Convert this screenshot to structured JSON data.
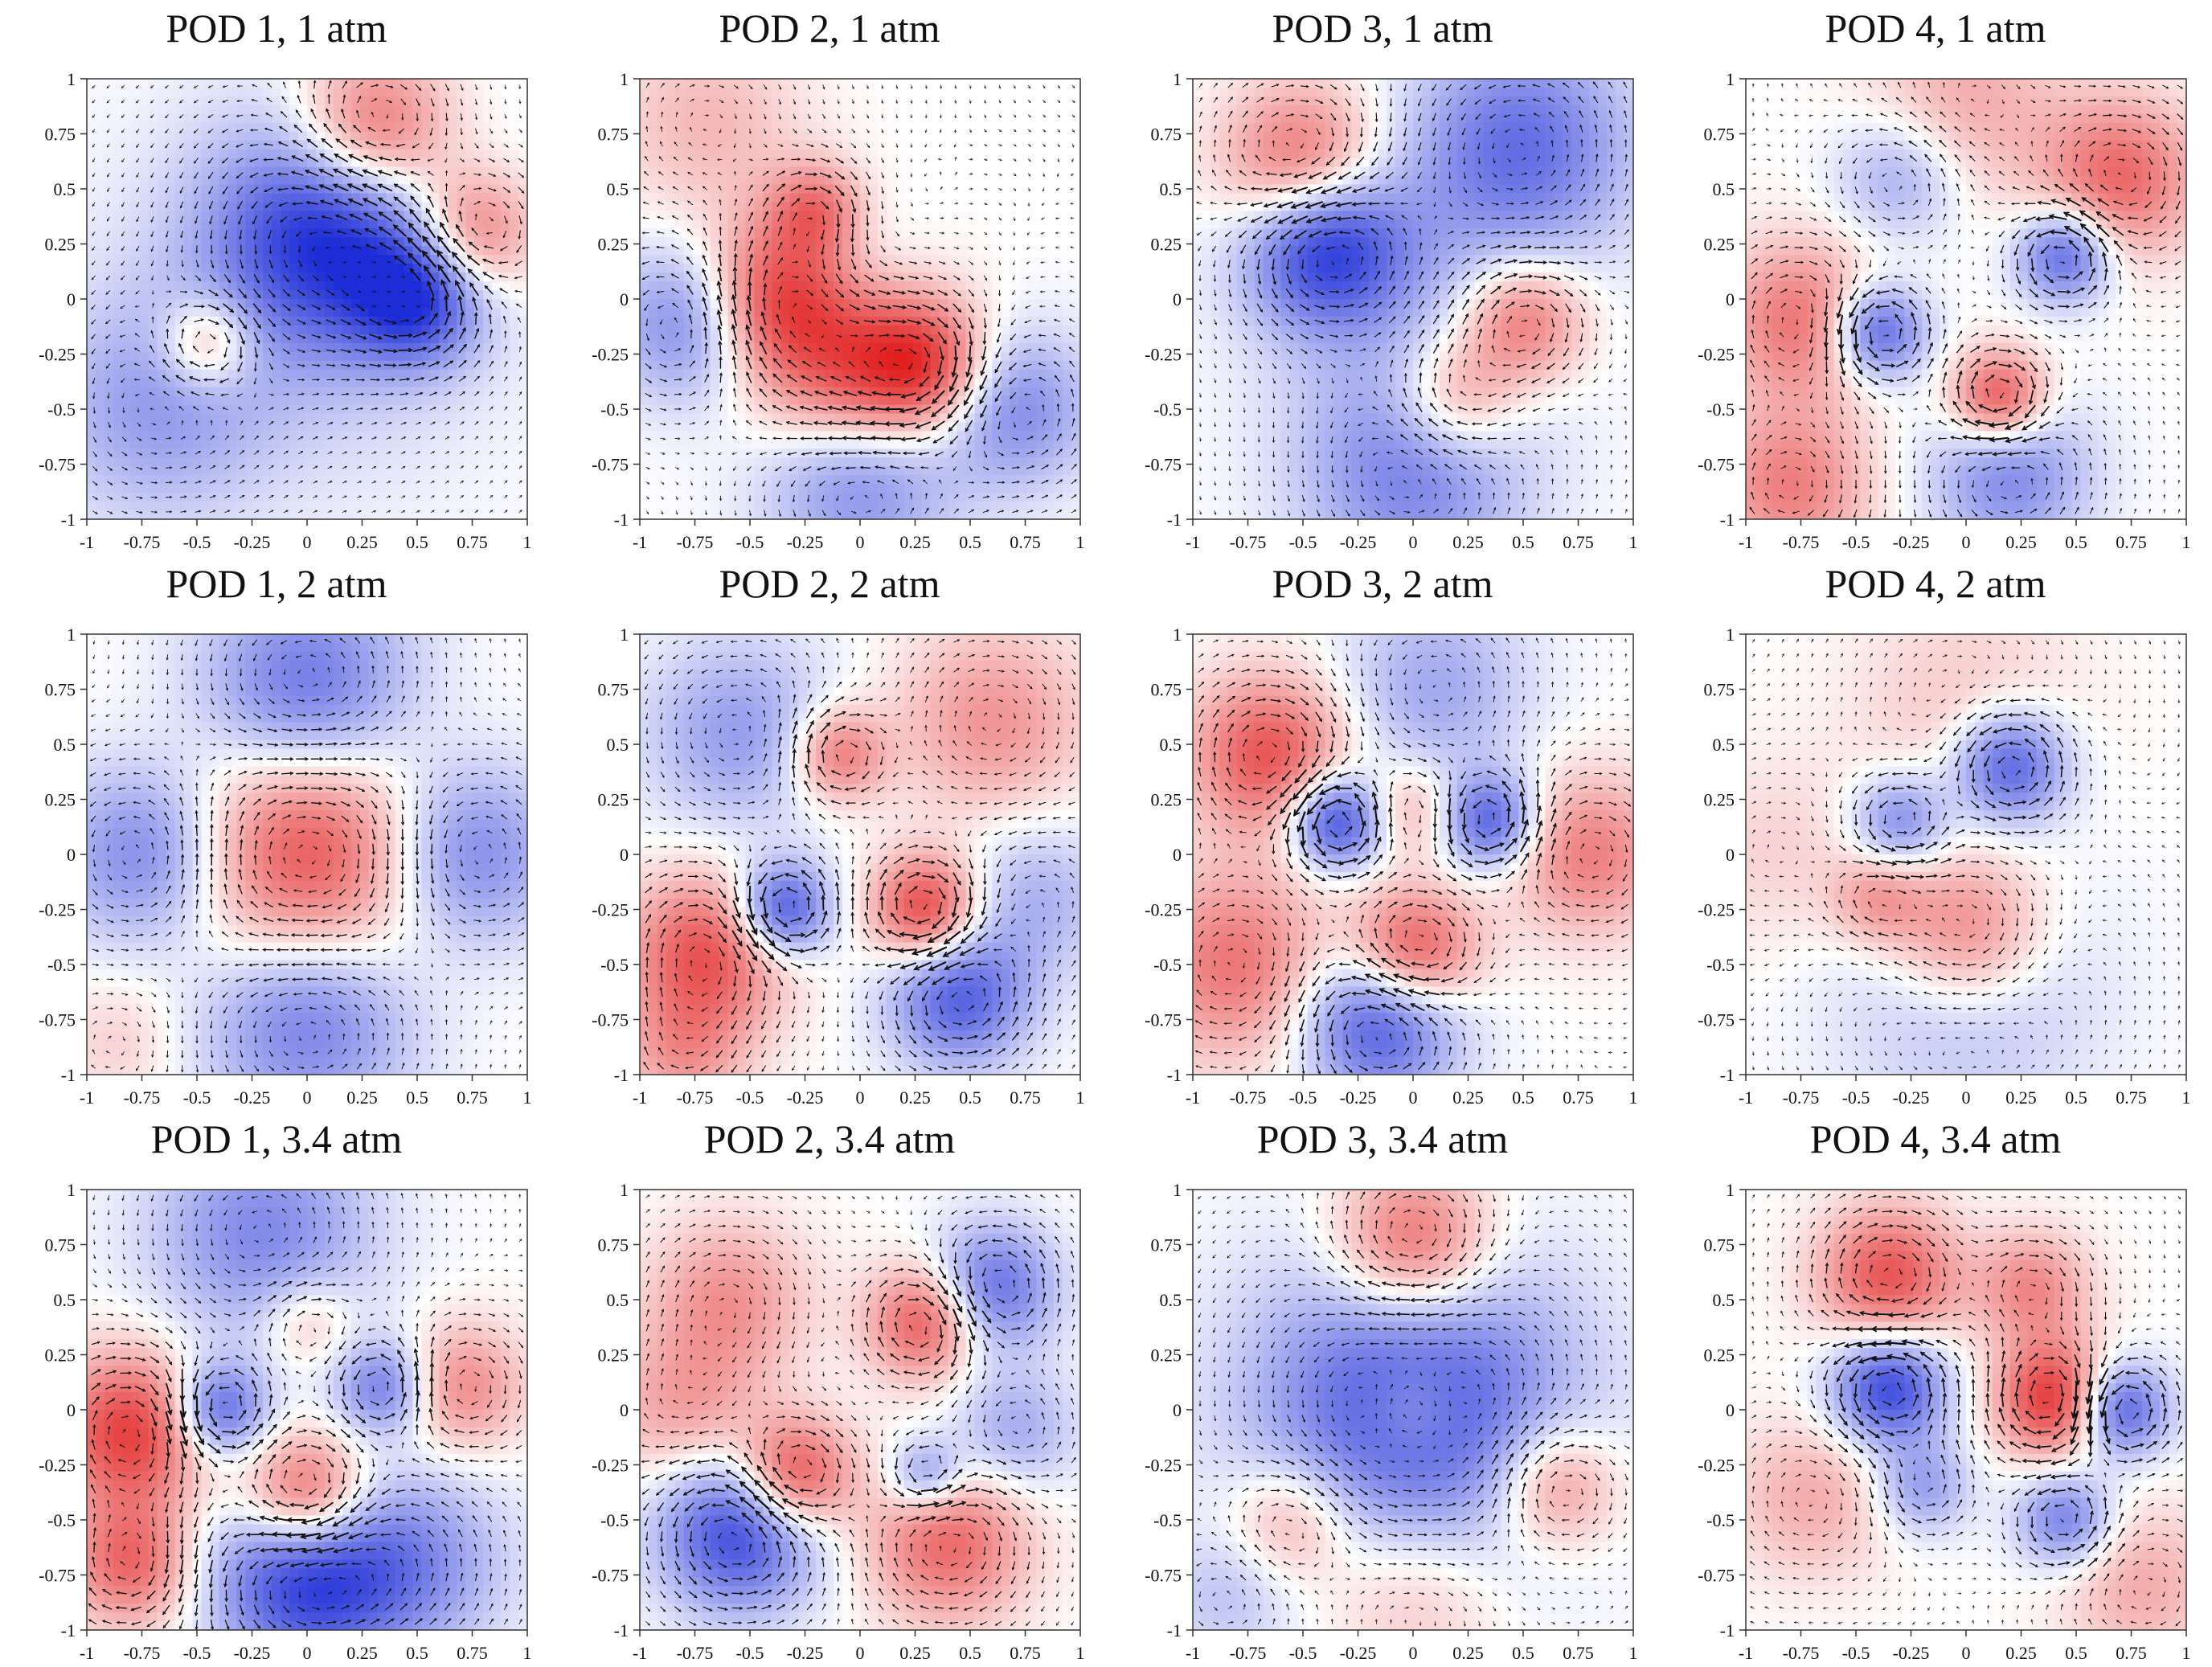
{
  "figure": {
    "colors": {
      "positive": "#e01818",
      "negative": "#1c2cd6",
      "neutral": "#ffffff",
      "vector": "#111111",
      "axis": "#333333"
    }
  },
  "chart_data": [
    {
      "type": "heatmap",
      "title": "POD 1, 1 atm",
      "mode": 1,
      "pressure_atm": 1,
      "xlim": [
        -1,
        1
      ],
      "ylim": [
        -1,
        1
      ],
      "xticks": [
        "-1",
        "-0.75",
        "-0.5",
        "-0.25",
        "0",
        "0.25",
        "0.5",
        "0.75",
        "1"
      ],
      "yticks": [
        "-1",
        "-0.75",
        "-0.5",
        "-0.25",
        "0",
        "0.25",
        "0.5",
        "0.75",
        "1"
      ],
      "colorscale": [
        "#1c2cd6",
        "#ffffff",
        "#e01818"
      ],
      "value_range": [
        -1,
        1
      ],
      "features": [
        {
          "x": 0.1,
          "y": 0.3,
          "r": 0.35,
          "value": -0.85
        },
        {
          "x": 0.5,
          "y": 0.0,
          "r": 0.2,
          "value": -0.7
        },
        {
          "x": 0.3,
          "y": 0.75,
          "r": 0.25,
          "value": 0.75
        },
        {
          "x": 0.75,
          "y": 0.3,
          "r": 0.2,
          "value": 0.6
        },
        {
          "x": -0.45,
          "y": -0.2,
          "r": 0.15,
          "value": 0.5
        },
        {
          "x": -0.7,
          "y": -0.5,
          "r": 0.35,
          "value": -0.35
        },
        {
          "x": 0.0,
          "y": 0.0,
          "r": 0.6,
          "value": -0.2
        }
      ]
    },
    {
      "type": "heatmap",
      "title": "POD 2, 1 atm",
      "mode": 2,
      "pressure_atm": 1,
      "xlim": [
        -1,
        1
      ],
      "ylim": [
        -1,
        1
      ],
      "xticks": [
        "-1",
        "-0.75",
        "-0.5",
        "-0.25",
        "0",
        "0.25",
        "0.5",
        "0.75",
        "1"
      ],
      "yticks": [
        "-1",
        "-0.75",
        "-0.5",
        "-0.25",
        "0",
        "0.25",
        "0.5",
        "0.75",
        "1"
      ],
      "colorscale": [
        "#1c2cd6",
        "#ffffff",
        "#e01818"
      ],
      "value_range": [
        -1,
        1
      ],
      "features": [
        {
          "x": -0.4,
          "y": 0.0,
          "r": 0.25,
          "value": 0.8
        },
        {
          "x": 0.0,
          "y": -0.4,
          "r": 0.3,
          "value": 0.85
        },
        {
          "x": 0.3,
          "y": -0.3,
          "r": 0.2,
          "value": 0.6
        },
        {
          "x": -0.2,
          "y": 0.4,
          "r": 0.15,
          "value": 0.5
        },
        {
          "x": 0.0,
          "y": -0.75,
          "r": 0.3,
          "value": -0.7
        },
        {
          "x": -0.75,
          "y": -0.1,
          "r": 0.25,
          "value": -0.6
        },
        {
          "x": 0.7,
          "y": -0.5,
          "r": 0.25,
          "value": -0.5
        },
        {
          "x": -0.7,
          "y": 0.8,
          "r": 0.3,
          "value": 0.25
        },
        {
          "x": 0.0,
          "y": 0.2,
          "r": 0.2,
          "value": -0.1
        }
      ]
    },
    {
      "type": "heatmap",
      "title": "POD 3, 1 atm",
      "mode": 3,
      "pressure_atm": 1,
      "xlim": [
        -1,
        1
      ],
      "ylim": [
        -1,
        1
      ],
      "xticks": [
        "-1",
        "-0.75",
        "-0.5",
        "-0.25",
        "0",
        "0.25",
        "0.5",
        "0.75",
        "1"
      ],
      "yticks": [
        "-1",
        "-0.75",
        "-0.5",
        "-0.25",
        "0",
        "0.25",
        "0.5",
        "0.75",
        "1"
      ],
      "colorscale": [
        "#1c2cd6",
        "#ffffff",
        "#e01818"
      ],
      "value_range": [
        -1,
        1
      ],
      "features": [
        {
          "x": -0.4,
          "y": 0.25,
          "r": 0.25,
          "value": -0.9
        },
        {
          "x": 0.5,
          "y": 0.7,
          "r": 0.35,
          "value": -0.6
        },
        {
          "x": -0.5,
          "y": 0.6,
          "r": 0.25,
          "value": 0.7
        },
        {
          "x": 0.5,
          "y": -0.1,
          "r": 0.2,
          "value": 0.6
        },
        {
          "x": 0.2,
          "y": -0.45,
          "r": 0.2,
          "value": 0.5
        },
        {
          "x": 0.0,
          "y": -0.8,
          "r": 0.35,
          "value": -0.5
        },
        {
          "x": 0.0,
          "y": 0.0,
          "r": 0.5,
          "value": -0.2
        }
      ]
    },
    {
      "type": "heatmap",
      "title": "POD 4, 1 atm",
      "mode": 4,
      "pressure_atm": 1,
      "xlim": [
        -1,
        1
      ],
      "ylim": [
        -1,
        1
      ],
      "xticks": [
        "-1",
        "-0.75",
        "-0.5",
        "-0.25",
        "0",
        "0.25",
        "0.5",
        "0.75",
        "1"
      ],
      "yticks": [
        "-1",
        "-0.75",
        "-0.5",
        "-0.25",
        "0",
        "0.25",
        "0.5",
        "0.75",
        "1"
      ],
      "colorscale": [
        "#1c2cd6",
        "#ffffff",
        "#e01818"
      ],
      "value_range": [
        -1,
        1
      ],
      "features": [
        {
          "x": -0.4,
          "y": -0.15,
          "r": 0.15,
          "value": -0.75
        },
        {
          "x": 0.45,
          "y": 0.2,
          "r": 0.15,
          "value": -0.7
        },
        {
          "x": 0.15,
          "y": -0.45,
          "r": 0.15,
          "value": 0.75
        },
        {
          "x": 0.7,
          "y": 0.55,
          "r": 0.25,
          "value": 0.6
        },
        {
          "x": -0.75,
          "y": -0.1,
          "r": 0.25,
          "value": 0.55
        },
        {
          "x": -0.8,
          "y": -0.85,
          "r": 0.25,
          "value": 0.5
        },
        {
          "x": 0.2,
          "y": -0.8,
          "r": 0.25,
          "value": -0.5
        },
        {
          "x": -0.3,
          "y": 0.55,
          "r": 0.2,
          "value": -0.35
        },
        {
          "x": 0.0,
          "y": 0.9,
          "r": 0.3,
          "value": 0.3
        }
      ]
    },
    {
      "type": "heatmap",
      "title": "POD 1, 2 atm",
      "mode": 1,
      "pressure_atm": 2,
      "xlim": [
        -1,
        1
      ],
      "ylim": [
        -1,
        1
      ],
      "xticks": [
        "-1",
        "-0.75",
        "-0.5",
        "-0.25",
        "0",
        "0.25",
        "0.5",
        "0.75",
        "1"
      ],
      "yticks": [
        "-1",
        "-0.75",
        "-0.5",
        "-0.25",
        "0",
        "0.25",
        "0.5",
        "0.75",
        "1"
      ],
      "colorscale": [
        "#1c2cd6",
        "#ffffff",
        "#e01818"
      ],
      "value_range": [
        -1,
        1
      ],
      "features": [
        {
          "x": 0.0,
          "y": 0.0,
          "r": 0.45,
          "value": 0.9
        },
        {
          "x": 0.0,
          "y": 0.7,
          "r": 0.35,
          "value": -0.75
        },
        {
          "x": 0.0,
          "y": -0.7,
          "r": 0.35,
          "value": -0.7
        },
        {
          "x": -0.7,
          "y": 0.0,
          "r": 0.3,
          "value": -0.65
        },
        {
          "x": 0.7,
          "y": 0.0,
          "r": 0.3,
          "value": -0.65
        },
        {
          "x": -0.85,
          "y": -0.85,
          "r": 0.2,
          "value": 0.15
        }
      ]
    },
    {
      "type": "heatmap",
      "title": "POD 2, 2 atm",
      "mode": 2,
      "pressure_atm": 2,
      "xlim": [
        -1,
        1
      ],
      "ylim": [
        -1,
        1
      ],
      "xticks": [
        "-1",
        "-0.75",
        "-0.5",
        "-0.25",
        "0",
        "0.25",
        "0.5",
        "0.75",
        "1"
      ],
      "yticks": [
        "-1",
        "-0.75",
        "-0.5",
        "-0.25",
        "0",
        "0.25",
        "0.5",
        "0.75",
        "1"
      ],
      "colorscale": [
        "#1c2cd6",
        "#ffffff",
        "#e01818"
      ],
      "value_range": [
        -1,
        1
      ],
      "features": [
        {
          "x": -0.35,
          "y": -0.25,
          "r": 0.15,
          "value": -0.8
        },
        {
          "x": 0.3,
          "y": -0.25,
          "r": 0.17,
          "value": 0.8
        },
        {
          "x": 0.45,
          "y": -0.65,
          "r": 0.22,
          "value": -0.7
        },
        {
          "x": -0.7,
          "y": -0.45,
          "r": 0.25,
          "value": 0.7
        },
        {
          "x": -0.1,
          "y": 0.45,
          "r": 0.15,
          "value": 0.55
        },
        {
          "x": 0.6,
          "y": 0.6,
          "r": 0.3,
          "value": 0.4
        },
        {
          "x": -0.55,
          "y": 0.55,
          "r": 0.3,
          "value": -0.4
        },
        {
          "x": 0.8,
          "y": -0.2,
          "r": 0.25,
          "value": -0.3
        },
        {
          "x": -0.8,
          "y": -0.9,
          "r": 0.2,
          "value": 0.35
        }
      ]
    },
    {
      "type": "heatmap",
      "title": "POD 3, 2 atm",
      "mode": 3,
      "pressure_atm": 2,
      "xlim": [
        -1,
        1
      ],
      "ylim": [
        -1,
        1
      ],
      "xticks": [
        "-1",
        "-0.75",
        "-0.5",
        "-0.25",
        "0",
        "0.25",
        "0.5",
        "0.75",
        "1"
      ],
      "yticks": [
        "-1",
        "-0.75",
        "-0.5",
        "-0.25",
        "0",
        "0.25",
        "0.5",
        "0.75",
        "1"
      ],
      "colorscale": [
        "#1c2cd6",
        "#ffffff",
        "#e01818"
      ],
      "value_range": [
        -1,
        1
      ],
      "features": [
        {
          "x": -0.35,
          "y": 0.15,
          "r": 0.15,
          "value": -0.85
        },
        {
          "x": 0.35,
          "y": 0.15,
          "r": 0.15,
          "value": -0.7
        },
        {
          "x": 0.0,
          "y": -0.45,
          "r": 0.2,
          "value": 0.8
        },
        {
          "x": -0.15,
          "y": -0.75,
          "r": 0.25,
          "value": -0.8
        },
        {
          "x": -0.65,
          "y": 0.45,
          "r": 0.25,
          "value": 0.7
        },
        {
          "x": -0.8,
          "y": -0.5,
          "r": 0.3,
          "value": 0.55
        },
        {
          "x": 0.8,
          "y": 0.0,
          "r": 0.25,
          "value": 0.5
        },
        {
          "x": 0.1,
          "y": 0.75,
          "r": 0.3,
          "value": -0.35
        },
        {
          "x": 0.0,
          "y": 0.2,
          "r": 0.15,
          "value": 0.3
        }
      ]
    },
    {
      "type": "heatmap",
      "title": "POD 4, 2 atm",
      "mode": 4,
      "pressure_atm": 2,
      "xlim": [
        -1,
        1
      ],
      "ylim": [
        -1,
        1
      ],
      "xticks": [
        "-1",
        "-0.75",
        "-0.5",
        "-0.25",
        "0",
        "0.25",
        "0.5",
        "0.75",
        "1"
      ],
      "yticks": [
        "-1",
        "-0.75",
        "-0.5",
        "-0.25",
        "0",
        "0.25",
        "0.5",
        "0.75",
        "1"
      ],
      "colorscale": [
        "#1c2cd6",
        "#ffffff",
        "#e01818"
      ],
      "value_range": [
        -1,
        1
      ],
      "features": [
        {
          "x": 0.2,
          "y": 0.4,
          "r": 0.18,
          "value": -0.75
        },
        {
          "x": -0.3,
          "y": 0.15,
          "r": 0.15,
          "value": -0.5
        },
        {
          "x": 0.0,
          "y": -0.35,
          "r": 0.25,
          "value": 0.6
        },
        {
          "x": -0.4,
          "y": -0.2,
          "r": 0.15,
          "value": 0.35
        },
        {
          "x": 0.0,
          "y": -0.6,
          "r": 0.4,
          "value": -0.3
        },
        {
          "x": 0.0,
          "y": 0.65,
          "r": 0.35,
          "value": 0.2
        },
        {
          "x": -0.85,
          "y": 0.0,
          "r": 0.3,
          "value": 0.15
        }
      ]
    },
    {
      "type": "heatmap",
      "title": "POD 1, 3.4 atm",
      "mode": 1,
      "pressure_atm": 3.4,
      "xlim": [
        -1,
        1
      ],
      "ylim": [
        -1,
        1
      ],
      "xticks": [
        "-1",
        "-0.75",
        "-0.5",
        "-0.25",
        "0",
        "0.25",
        "0.5",
        "0.75",
        "1"
      ],
      "yticks": [
        "-1",
        "-0.75",
        "-0.5",
        "-0.25",
        "0",
        "0.25",
        "0.5",
        "0.75",
        "1"
      ],
      "colorscale": [
        "#1c2cd6",
        "#ffffff",
        "#e01818"
      ],
      "value_range": [
        -1,
        1
      ],
      "features": [
        {
          "x": 0.0,
          "y": -0.75,
          "r": 0.3,
          "value": -0.9
        },
        {
          "x": 0.0,
          "y": -0.4,
          "r": 0.2,
          "value": 0.85
        },
        {
          "x": -0.8,
          "y": -0.1,
          "r": 0.25,
          "value": 0.8
        },
        {
          "x": -0.8,
          "y": -0.7,
          "r": 0.2,
          "value": 0.6
        },
        {
          "x": -0.4,
          "y": 0.0,
          "r": 0.15,
          "value": -0.7
        },
        {
          "x": 0.35,
          "y": 0.1,
          "r": 0.15,
          "value": -0.55
        },
        {
          "x": 0.7,
          "y": 0.1,
          "r": 0.2,
          "value": 0.45
        },
        {
          "x": -0.2,
          "y": 0.8,
          "r": 0.35,
          "value": -0.5
        },
        {
          "x": 0.5,
          "y": -0.7,
          "r": 0.3,
          "value": -0.4
        },
        {
          "x": 0.0,
          "y": 0.4,
          "r": 0.15,
          "value": 0.3
        }
      ]
    },
    {
      "type": "heatmap",
      "title": "POD 2, 3.4 atm",
      "mode": 2,
      "pressure_atm": 3.4,
      "xlim": [
        -1,
        1
      ],
      "ylim": [
        -1,
        1
      ],
      "xticks": [
        "-1",
        "-0.75",
        "-0.5",
        "-0.25",
        "0",
        "0.25",
        "0.5",
        "0.75",
        "1"
      ],
      "yticks": [
        "-1",
        "-0.75",
        "-0.5",
        "-0.25",
        "0",
        "0.25",
        "0.5",
        "0.75",
        "1"
      ],
      "colorscale": [
        "#1c2cd6",
        "#ffffff",
        "#e01818"
      ],
      "value_range": [
        -1,
        1
      ],
      "features": [
        {
          "x": -0.55,
          "y": -0.55,
          "r": 0.25,
          "value": -0.85
        },
        {
          "x": -0.3,
          "y": -0.3,
          "r": 0.18,
          "value": 0.8
        },
        {
          "x": 0.3,
          "y": 0.4,
          "r": 0.18,
          "value": 0.7
        },
        {
          "x": 0.6,
          "y": 0.55,
          "r": 0.2,
          "value": -0.65
        },
        {
          "x": 0.4,
          "y": -0.6,
          "r": 0.25,
          "value": 0.6
        },
        {
          "x": 0.3,
          "y": -0.3,
          "r": 0.12,
          "value": -0.5
        },
        {
          "x": -0.6,
          "y": 0.5,
          "r": 0.25,
          "value": 0.4
        },
        {
          "x": 0.7,
          "y": -0.1,
          "r": 0.2,
          "value": -0.35
        },
        {
          "x": -0.8,
          "y": 0.0,
          "r": 0.25,
          "value": 0.35
        }
      ]
    },
    {
      "type": "heatmap",
      "title": "POD 3, 3.4 atm",
      "mode": 3,
      "pressure_atm": 3.4,
      "xlim": [
        -1,
        1
      ],
      "ylim": [
        -1,
        1
      ],
      "xticks": [
        "-1",
        "-0.75",
        "-0.5",
        "-0.25",
        "0",
        "0.25",
        "0.5",
        "0.75",
        "1"
      ],
      "yticks": [
        "-1",
        "-0.75",
        "-0.5",
        "-0.25",
        "0",
        "0.25",
        "0.5",
        "0.75",
        "1"
      ],
      "colorscale": [
        "#1c2cd6",
        "#ffffff",
        "#e01818"
      ],
      "value_range": [
        -1,
        1
      ],
      "features": [
        {
          "x": 0.0,
          "y": 0.0,
          "r": 0.5,
          "value": -0.8
        },
        {
          "x": 0.0,
          "y": 0.75,
          "r": 0.25,
          "value": 0.7
        },
        {
          "x": 0.65,
          "y": -0.35,
          "r": 0.2,
          "value": 0.5
        },
        {
          "x": -0.55,
          "y": -0.5,
          "r": 0.2,
          "value": 0.4
        },
        {
          "x": 0.0,
          "y": -0.8,
          "r": 0.3,
          "value": 0.3
        },
        {
          "x": 0.0,
          "y": 0.0,
          "r": 0.15,
          "value": 0.25
        },
        {
          "x": -0.85,
          "y": -0.85,
          "r": 0.2,
          "value": -0.2
        }
      ]
    },
    {
      "type": "heatmap",
      "title": "POD 4, 3.4 atm",
      "mode": 4,
      "pressure_atm": 3.4,
      "xlim": [
        -1,
        1
      ],
      "ylim": [
        -1,
        1
      ],
      "xticks": [
        "-1",
        "-0.75",
        "-0.5",
        "-0.25",
        "0",
        "0.25",
        "0.5",
        "0.75",
        "1"
      ],
      "yticks": [
        "-1",
        "-0.75",
        "-0.5",
        "-0.25",
        "0",
        "0.25",
        "0.5",
        "0.75",
        "1"
      ],
      "colorscale": [
        "#1c2cd6",
        "#ffffff",
        "#e01818"
      ],
      "value_range": [
        -1,
        1
      ],
      "features": [
        {
          "x": -0.35,
          "y": 0.1,
          "r": 0.18,
          "value": -0.85
        },
        {
          "x": 0.4,
          "y": 0.05,
          "r": 0.18,
          "value": 0.85
        },
        {
          "x": 0.7,
          "y": 0.0,
          "r": 0.15,
          "value": -0.75
        },
        {
          "x": -0.35,
          "y": 0.6,
          "r": 0.22,
          "value": 0.7
        },
        {
          "x": 0.45,
          "y": -0.5,
          "r": 0.15,
          "value": -0.55
        },
        {
          "x": 0.3,
          "y": 0.55,
          "r": 0.18,
          "value": 0.45
        },
        {
          "x": -0.7,
          "y": -0.4,
          "r": 0.25,
          "value": 0.3
        },
        {
          "x": 0.8,
          "y": -0.8,
          "r": 0.25,
          "value": 0.3
        },
        {
          "x": -0.2,
          "y": -0.35,
          "r": 0.15,
          "value": -0.4
        }
      ]
    }
  ]
}
